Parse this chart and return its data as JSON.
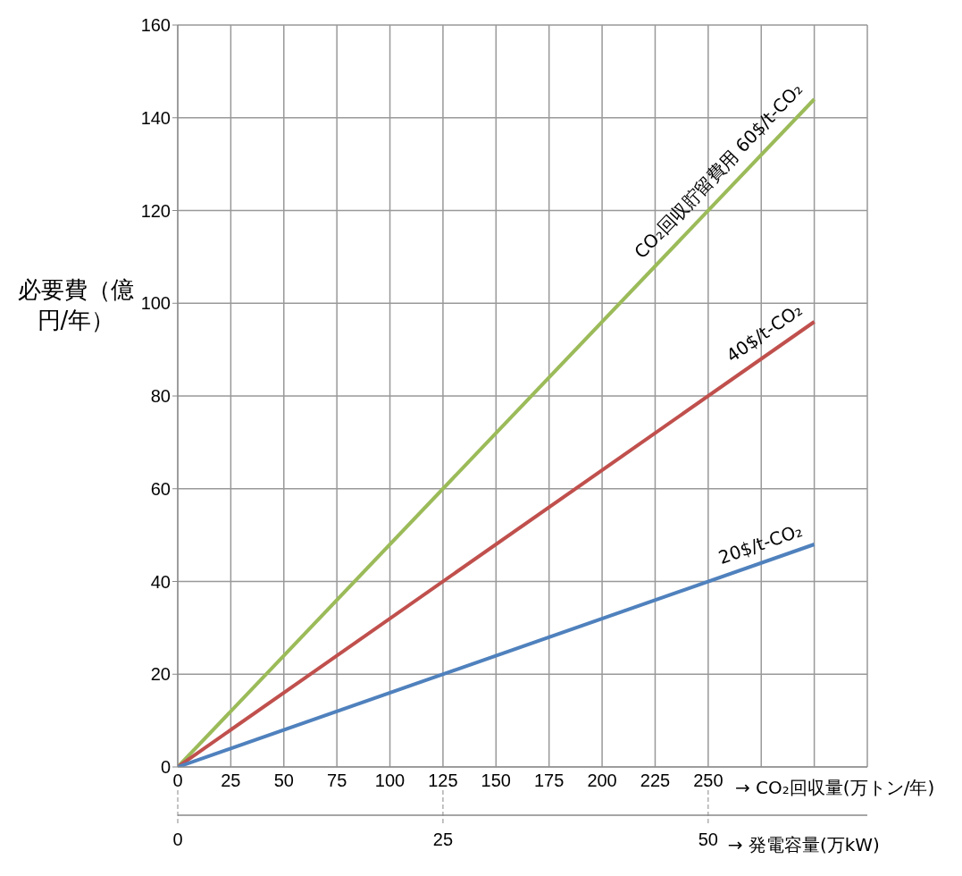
{
  "chart_data": {
    "type": "line",
    "ylabel": "必要費（億円/年）",
    "xlabel": "→ CO₂回収量(万トン/年)",
    "x2label": "→ 発電容量(万kW)",
    "x": [
      0,
      300
    ],
    "series": [
      {
        "name": "CO₂回収貯留費用 60$/t-CO₂",
        "color": "#9bbb59",
        "values": [
          0,
          144
        ]
      },
      {
        "name": "40$/t-CO₂",
        "color": "#c0504d",
        "values": [
          0,
          96
        ]
      },
      {
        "name": "20$/t-CO₂",
        "color": "#4f81bd",
        "values": [
          0,
          48
        ]
      }
    ],
    "xlim": [
      0,
      325
    ],
    "xticks": [
      0,
      25,
      50,
      75,
      100,
      125,
      150,
      175,
      200,
      225,
      250,
      {
        "value": 275,
        "label": null
      },
      {
        "value": 300,
        "label": null
      },
      {
        "value": 325,
        "label": null
      }
    ],
    "ylim": [
      0,
      160
    ],
    "yticks": [
      0,
      20,
      40,
      60,
      80,
      100,
      120,
      140,
      160
    ],
    "x2lim": [
      0,
      65
    ],
    "x2ticks": [
      0,
      25,
      50
    ],
    "grid": true,
    "marker": "none",
    "line_style": "solid"
  }
}
